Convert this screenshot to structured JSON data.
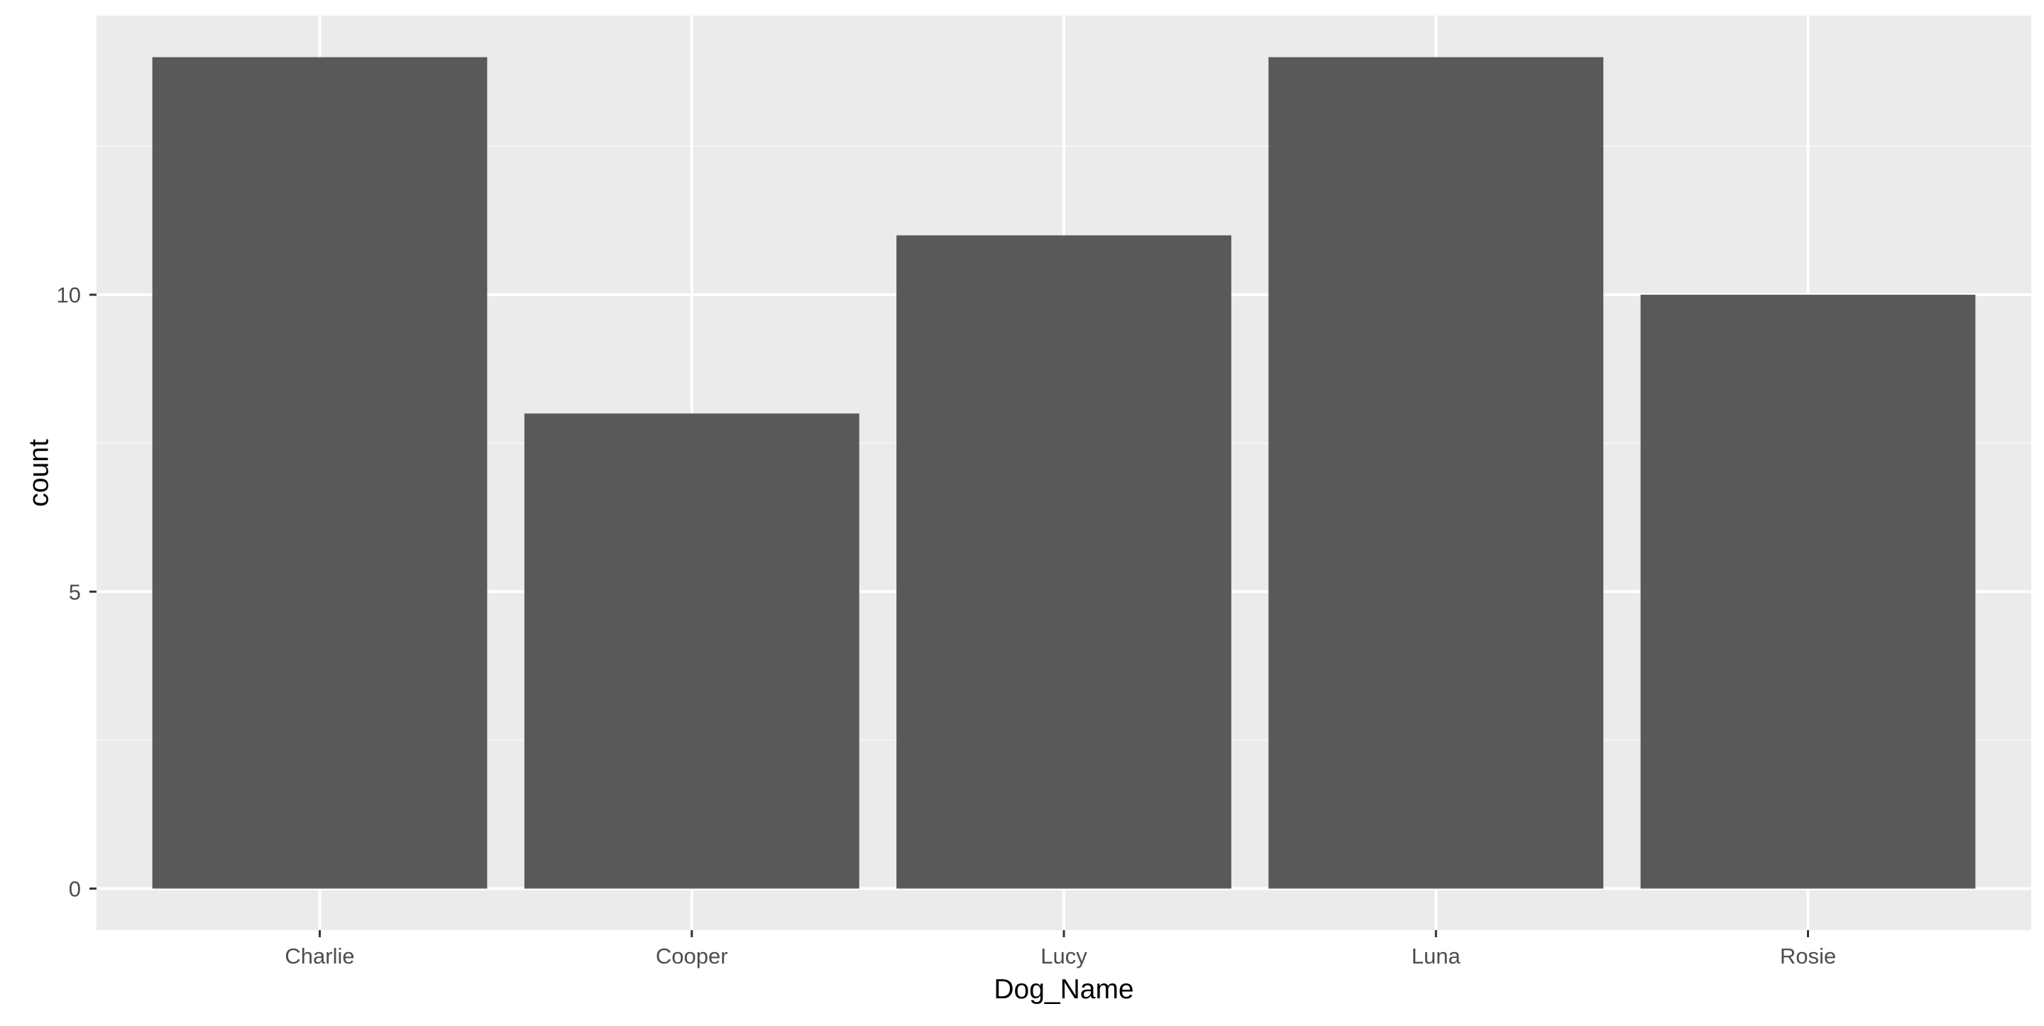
{
  "chart_data": {
    "type": "bar",
    "title": "",
    "xlabel": "Dog_Name",
    "ylabel": "count",
    "categories": [
      "Charlie",
      "Cooper",
      "Lucy",
      "Luna",
      "Rosie"
    ],
    "values": [
      14,
      8,
      11,
      14,
      10
    ],
    "ylim": [
      -0.7,
      14.7
    ],
    "yticks": [
      0,
      5,
      10
    ],
    "grid": true,
    "legend": "none",
    "colors": {
      "bar": "#595959",
      "panel_background": "#EBEBEB",
      "grid_major": "#FFFFFF",
      "grid_minor": "#F5F5F5",
      "tick_text": "#4D4D4D",
      "axis_title": "#000000"
    }
  }
}
